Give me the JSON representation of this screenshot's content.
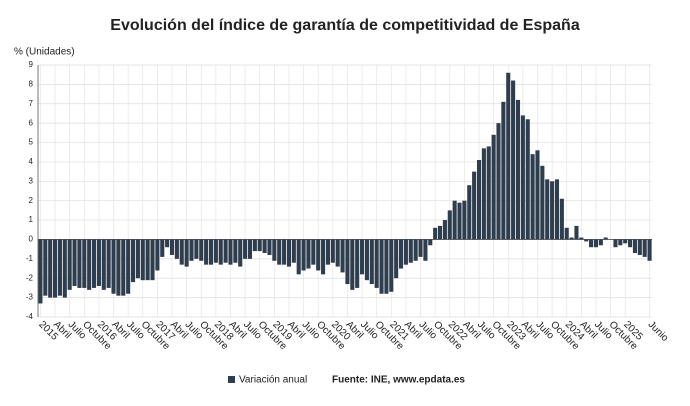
{
  "chart_data": {
    "type": "bar",
    "title": "Evolución del índice de garantía de competitividad de España",
    "y_label": "% (Unidades)",
    "source": "Fuente: INE, www.epdata.es",
    "series": [
      {
        "name": "Variación anual",
        "color": "#2f3e4e",
        "values": [
          -3.3,
          -2.9,
          -3.0,
          -3.0,
          -2.9,
          -3.0,
          -2.6,
          -2.4,
          -2.5,
          -2.5,
          -2.6,
          -2.5,
          -2.4,
          -2.6,
          -2.5,
          -2.8,
          -2.9,
          -2.9,
          -2.8,
          -2.2,
          -2.0,
          -2.1,
          -2.1,
          -2.1,
          -1.6,
          -0.9,
          -0.4,
          -0.8,
          -1.0,
          -1.3,
          -1.4,
          -1.1,
          -1.0,
          -1.1,
          -1.3,
          -1.3,
          -1.2,
          -1.3,
          -1.2,
          -1.3,
          -1.2,
          -1.4,
          -1.0,
          -1.0,
          -0.6,
          -0.6,
          -0.7,
          -0.8,
          -1.1,
          -1.3,
          -1.3,
          -1.4,
          -1.2,
          -1.8,
          -1.6,
          -1.5,
          -1.3,
          -1.6,
          -1.8,
          -1.3,
          -1.2,
          -1.4,
          -1.7,
          -2.3,
          -2.6,
          -2.5,
          -1.8,
          -2.1,
          -2.3,
          -2.5,
          -2.8,
          -2.8,
          -2.7,
          -2.0,
          -1.5,
          -1.3,
          -1.2,
          -1.1,
          -0.9,
          -1.1,
          -0.3,
          0.6,
          0.7,
          1.0,
          1.5,
          2.0,
          1.9,
          2.0,
          2.8,
          3.5,
          4.1,
          4.7,
          4.8,
          5.4,
          6.0,
          7.1,
          8.6,
          8.2,
          7.2,
          6.4,
          6.2,
          4.4,
          4.6,
          3.8,
          3.1,
          3.0,
          3.1,
          2.1,
          0.6,
          0.1,
          0.7,
          0.1,
          -0.1,
          -0.4,
          -0.4,
          -0.3,
          0.1,
          0.0,
          -0.4,
          -0.3,
          -0.2,
          -0.4,
          -0.7,
          -0.8,
          -0.9,
          -1.1
        ]
      }
    ],
    "categories": [
      "2015",
      null,
      null,
      "Abril",
      null,
      null,
      "Julio",
      null,
      null,
      "Octubre",
      null,
      null,
      "2016",
      null,
      null,
      "Abril",
      null,
      null,
      "Julio",
      null,
      null,
      "Octubre",
      null,
      null,
      "2017",
      null,
      null,
      "Abril",
      null,
      null,
      "Julio",
      null,
      null,
      "Octubre",
      null,
      null,
      "2018",
      null,
      null,
      "Abril",
      null,
      null,
      "Julio",
      null,
      null,
      "Octubre",
      null,
      null,
      "2019",
      null,
      null,
      "Abril",
      null,
      null,
      "Julio",
      null,
      null,
      "Octubre",
      null,
      null,
      "2020",
      null,
      null,
      "Abril",
      null,
      null,
      "Julio",
      null,
      null,
      "Octubre",
      null,
      null,
      "2021",
      null,
      null,
      "Abril",
      null,
      null,
      "Julio",
      null,
      null,
      "Octubre",
      null,
      null,
      "2022",
      null,
      null,
      "Abril",
      null,
      null,
      "Julio",
      null,
      null,
      "Octubre",
      null,
      null,
      "2023",
      null,
      null,
      "Abril",
      null,
      null,
      "Julio",
      null,
      null,
      "Octubre",
      null,
      null,
      "2024",
      null,
      null,
      "Abril",
      null,
      null,
      "Julio",
      null,
      null,
      "Octubre",
      null,
      null,
      "2025",
      null,
      null,
      null,
      null,
      "Junio"
    ],
    "ylim": [
      -4,
      9
    ],
    "yticks": [
      -4,
      -3,
      -2,
      -1,
      0,
      1,
      2,
      3,
      4,
      5,
      6,
      7,
      8,
      9
    ],
    "grid": true
  }
}
